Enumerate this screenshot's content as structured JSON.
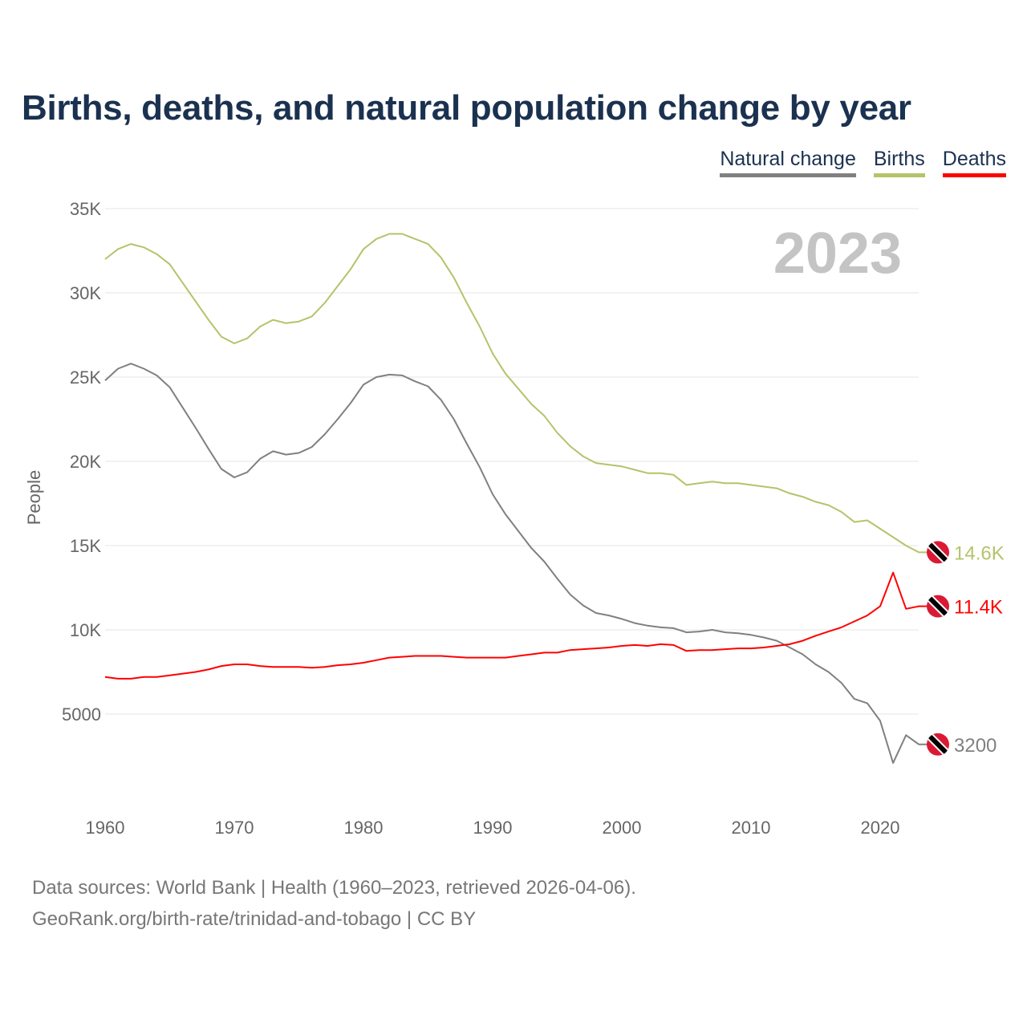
{
  "chart_data": {
    "type": "line",
    "title": "Births, deaths, and natural population change by year",
    "xlabel": "",
    "ylabel": "People",
    "xlim": [
      1960,
      2023
    ],
    "ylim": [
      0,
      35000
    ],
    "x_ticks": [
      "1960",
      "1970",
      "1980",
      "1990",
      "2000",
      "2010",
      "2020"
    ],
    "y_ticks": [
      "5000",
      "10K",
      "15K",
      "20K",
      "25K",
      "30K",
      "35K"
    ],
    "y_tick_values": [
      5000,
      10000,
      15000,
      20000,
      25000,
      30000,
      35000
    ],
    "x_tick_values": [
      1960,
      1970,
      1980,
      1990,
      2000,
      2010,
      2020
    ],
    "grid": true,
    "legend_position": "top-right",
    "year_watermark": "2023",
    "start_year": 1960,
    "series": [
      {
        "name": "Natural change",
        "color": "#808080",
        "end_label": "3200",
        "values": [
          24800,
          25500,
          25800,
          25500,
          25100,
          24400,
          23200,
          22000,
          20750,
          19550,
          19050,
          19350,
          20150,
          20600,
          20400,
          20500,
          20850,
          21600,
          22500,
          23450,
          24550,
          25000,
          25150,
          25100,
          24750,
          24450,
          23650,
          22500,
          21050,
          19650,
          18050,
          16850,
          15850,
          14850,
          14050,
          13050,
          12100,
          11450,
          11000,
          10850,
          10650,
          10400,
          10250,
          10150,
          10100,
          9850,
          9900,
          10000,
          9850,
          9800,
          9700,
          9550,
          9350,
          8950,
          8550,
          7950,
          7500,
          6850,
          5900,
          5650,
          4600,
          2100,
          3750,
          3200
        ]
      },
      {
        "name": "Births",
        "color": "#b5c36a",
        "end_label": "14.6K",
        "values": [
          32000,
          32600,
          32900,
          32700,
          32300,
          31700,
          30600,
          29500,
          28400,
          27400,
          27000,
          27300,
          28000,
          28400,
          28200,
          28300,
          28600,
          29400,
          30400,
          31400,
          32600,
          33200,
          33500,
          33500,
          33200,
          32900,
          32100,
          30900,
          29400,
          28000,
          26400,
          25200,
          24300,
          23400,
          22700,
          21700,
          20900,
          20300,
          19900,
          19800,
          19700,
          19500,
          19300,
          19300,
          19200,
          18600,
          18700,
          18800,
          18700,
          18700,
          18600,
          18500,
          18400,
          18100,
          17900,
          17600,
          17400,
          17000,
          16400,
          16500,
          16000,
          15500,
          15000,
          14600
        ]
      },
      {
        "name": "Deaths",
        "color": "#ff0000",
        "end_label": "11.4K",
        "values": [
          7200,
          7100,
          7100,
          7200,
          7200,
          7300,
          7400,
          7500,
          7650,
          7850,
          7950,
          7950,
          7850,
          7800,
          7800,
          7800,
          7750,
          7800,
          7900,
          7950,
          8050,
          8200,
          8350,
          8400,
          8450,
          8450,
          8450,
          8400,
          8350,
          8350,
          8350,
          8350,
          8450,
          8550,
          8650,
          8650,
          8800,
          8850,
          8900,
          8950,
          9050,
          9100,
          9050,
          9150,
          9100,
          8750,
          8800,
          8800,
          8850,
          8900,
          8900,
          8950,
          9050,
          9150,
          9350,
          9650,
          9900,
          10150,
          10500,
          10850,
          11400,
          13400,
          11250,
          11400
        ]
      }
    ]
  },
  "footer": {
    "line1": "Data sources: World Bank | Health (1960–2023, retrieved 2026-04-06).",
    "line2": "GeoRank.org/birth-rate/trinidad-and-tobago | CC BY"
  }
}
